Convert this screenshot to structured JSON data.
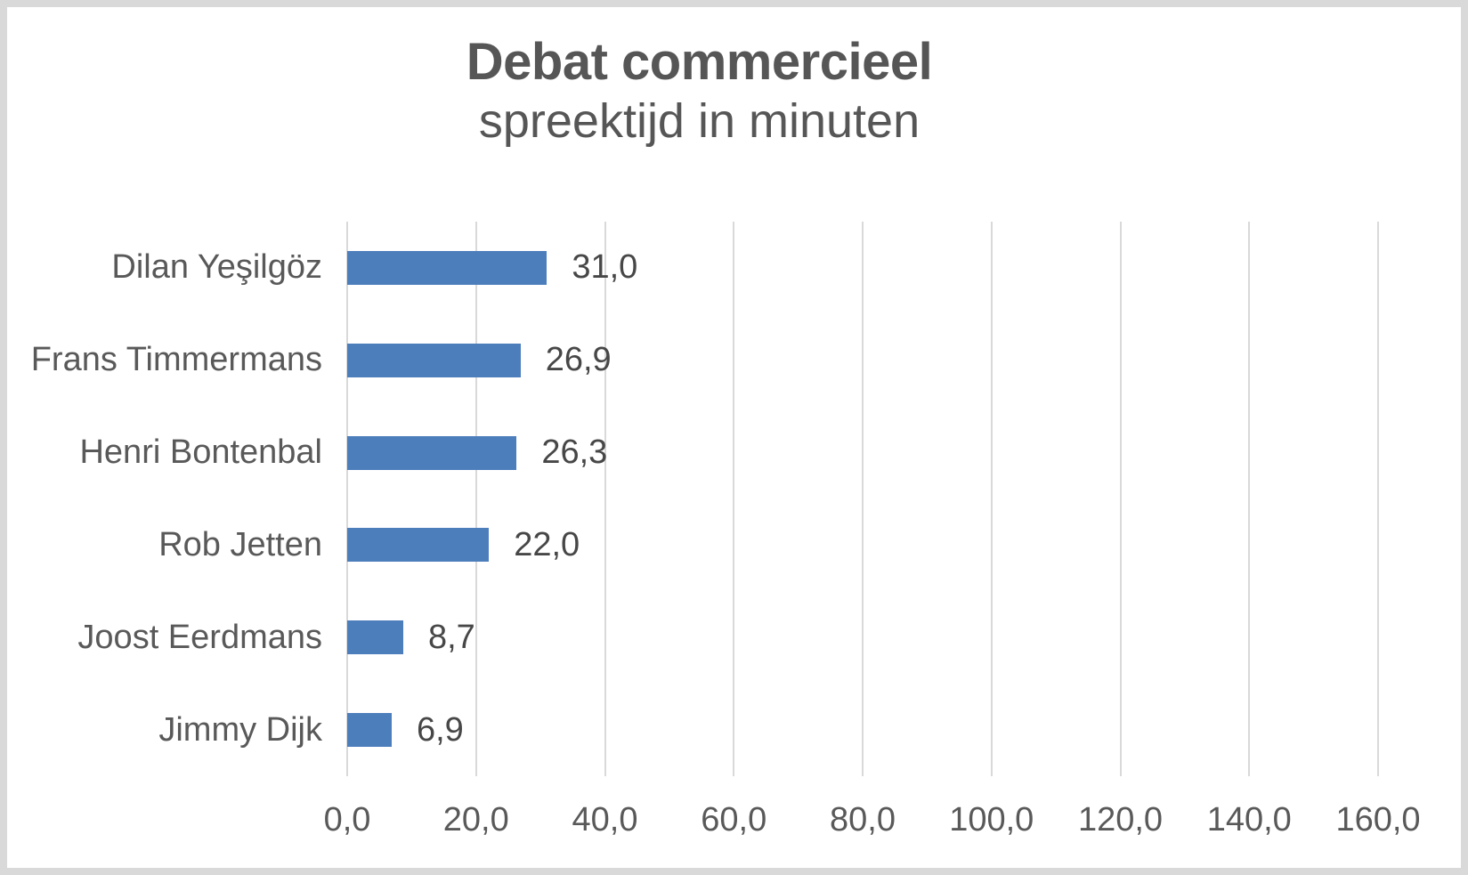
{
  "page": {
    "background": "#ffffff",
    "border_color": "#d9d9d9"
  },
  "chart_data": {
    "type": "bar",
    "orientation": "horizontal",
    "title": "Debat commercieel",
    "subtitle": "spreektijd in minuten",
    "categories": [
      "Dilan Yeşilgöz",
      "Frans Timmermans",
      "Henri Bontenbal",
      "Rob Jetten",
      "Joost Eerdmans",
      "Jimmy Dijk"
    ],
    "values": [
      31.0,
      26.9,
      26.3,
      22.0,
      8.7,
      6.9
    ],
    "value_labels": [
      "31,0",
      "26,9",
      "26,3",
      "22,0",
      "8,7",
      "6,9"
    ],
    "xlabel": "",
    "ylabel": "",
    "xlim": [
      0,
      160
    ],
    "x_ticks": [
      0,
      20,
      40,
      60,
      80,
      100,
      120,
      140,
      160
    ],
    "x_tick_labels": [
      "0,0",
      "20,0",
      "40,0",
      "60,0",
      "80,0",
      "100,0",
      "120,0",
      "140,0",
      "160,0"
    ],
    "grid": true,
    "legend_position": "none",
    "bar_color": "#4d7ebc",
    "gridline_color": "#d9d9d9",
    "text_color": "#595959",
    "value_label_color": "#474747",
    "title_color": "#565656"
  }
}
